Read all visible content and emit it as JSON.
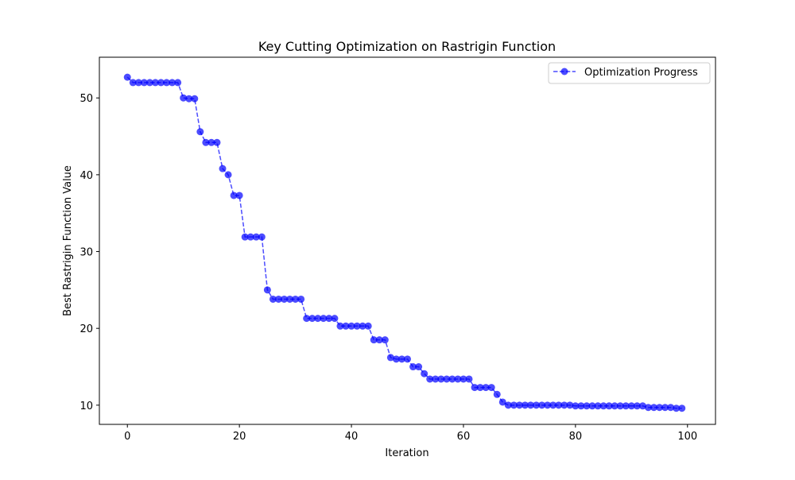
{
  "chart_data": {
    "type": "line",
    "title": "Key Cutting Optimization on Rastrigin Function",
    "xlabel": "Iteration",
    "ylabel": "Best Rastrigin Function Value",
    "xlim": [
      -5,
      105
    ],
    "ylim": [
      7.5,
      55.3
    ],
    "xticks": [
      0,
      20,
      40,
      60,
      80,
      100
    ],
    "yticks": [
      10,
      20,
      30,
      40,
      50
    ],
    "grid": false,
    "legend_position": "top-right",
    "series": [
      {
        "name": "Optimization Progress",
        "color": "#0000ff",
        "line_style": "dashed",
        "marker": "circle",
        "x": [
          0,
          1,
          2,
          3,
          4,
          5,
          6,
          7,
          8,
          9,
          10,
          11,
          12,
          13,
          14,
          15,
          16,
          17,
          18,
          19,
          20,
          21,
          22,
          23,
          24,
          25,
          26,
          27,
          28,
          29,
          30,
          31,
          32,
          33,
          34,
          35,
          36,
          37,
          38,
          39,
          40,
          41,
          42,
          43,
          44,
          45,
          46,
          47,
          48,
          49,
          50,
          51,
          52,
          53,
          54,
          55,
          56,
          57,
          58,
          59,
          60,
          61,
          62,
          63,
          64,
          65,
          66,
          67,
          68,
          69,
          70,
          71,
          72,
          73,
          74,
          75,
          76,
          77,
          78,
          79,
          80,
          81,
          82,
          83,
          84,
          85,
          86,
          87,
          88,
          89,
          90,
          91,
          92,
          93,
          94,
          95,
          96,
          97,
          98,
          99
        ],
        "y": [
          52.7,
          52.0,
          52.0,
          52.0,
          52.0,
          52.0,
          52.0,
          52.0,
          52.0,
          52.0,
          50.0,
          49.9,
          49.9,
          45.6,
          44.2,
          44.2,
          44.2,
          40.8,
          40.0,
          37.3,
          37.3,
          31.9,
          31.9,
          31.9,
          31.9,
          25.0,
          23.8,
          23.8,
          23.8,
          23.8,
          23.8,
          23.8,
          21.3,
          21.3,
          21.3,
          21.3,
          21.3,
          21.3,
          20.3,
          20.3,
          20.3,
          20.3,
          20.3,
          20.3,
          18.5,
          18.5,
          18.5,
          16.2,
          16.0,
          16.0,
          16.0,
          15.0,
          15.0,
          14.1,
          13.4,
          13.4,
          13.4,
          13.4,
          13.4,
          13.4,
          13.4,
          13.4,
          12.3,
          12.3,
          12.3,
          12.3,
          11.4,
          10.4,
          10.0,
          10.0,
          10.0,
          10.0,
          10.0,
          10.0,
          10.0,
          10.0,
          10.0,
          10.0,
          10.0,
          10.0,
          9.9,
          9.9,
          9.9,
          9.9,
          9.9,
          9.9,
          9.9,
          9.9,
          9.9,
          9.9,
          9.9,
          9.9,
          9.9,
          9.7,
          9.7,
          9.7,
          9.7,
          9.7,
          9.6,
          9.6
        ]
      }
    ]
  }
}
